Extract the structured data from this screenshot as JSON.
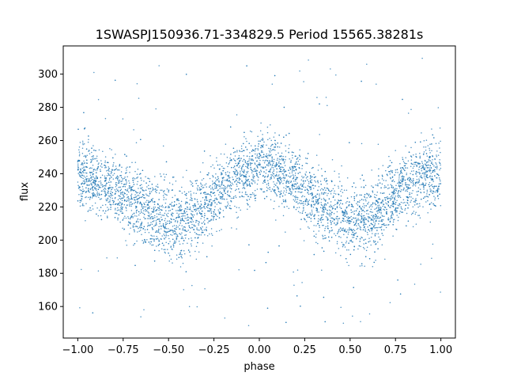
{
  "chart_data": {
    "type": "scatter",
    "title": "1SWASPJ150936.71-334829.5 Period 15565.38281s",
    "xlabel": "phase",
    "ylabel": "flux",
    "xlim": [
      -1.08,
      1.08
    ],
    "ylim": [
      141,
      317
    ],
    "xticks": [
      -1.0,
      -0.75,
      -0.5,
      -0.25,
      0.0,
      0.25,
      0.5,
      0.75,
      1.0
    ],
    "xtick_labels": [
      "−1.00",
      "−0.75",
      "−0.50",
      "−0.25",
      "0.00",
      "0.25",
      "0.50",
      "0.75",
      "1.00"
    ],
    "yticks": [
      160,
      180,
      200,
      220,
      240,
      260,
      280,
      300
    ],
    "ytick_labels": [
      "160",
      "180",
      "200",
      "220",
      "240",
      "260",
      "280",
      "300"
    ],
    "grid": false,
    "marker_color": "#1f77b4",
    "series": [
      {
        "phase": [
          -1.0,
          -0.9,
          -0.8,
          -0.7,
          -0.6,
          -0.5,
          -0.4,
          -0.3,
          -0.2,
          -0.1,
          0.0,
          0.1,
          0.2,
          0.3,
          0.4,
          0.5,
          0.6,
          0.7,
          0.8,
          0.9,
          1.0
        ],
        "flux_center": [
          239,
          236,
          231,
          224,
          216,
          210,
          212,
          220,
          231,
          241,
          244,
          241,
          234,
          226,
          218,
          210,
          212,
          222,
          233,
          239,
          239
        ],
        "flux_spread": [
          12,
          12,
          11,
          12,
          13,
          13,
          13,
          12,
          11,
          11,
          11,
          11,
          11,
          12,
          13,
          13,
          13,
          12,
          11,
          12,
          12
        ],
        "flux_outlier_range": [
          148,
          310
        ]
      }
    ]
  }
}
